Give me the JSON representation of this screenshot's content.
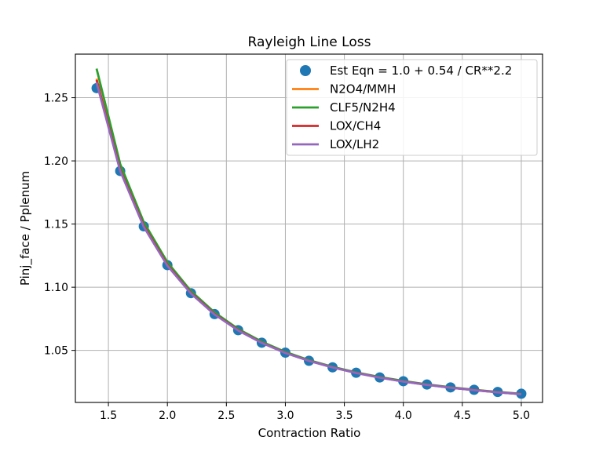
{
  "chart_data": {
    "type": "line",
    "title": "Rayleigh Line Loss",
    "xlabel": "Contraction Ratio",
    "ylabel": "Pinj_face / Pplenum",
    "xlim": [
      1.22,
      5.18
    ],
    "ylim": [
      1.0088,
      1.2845
    ],
    "xticks": [
      1.5,
      2.0,
      2.5,
      3.0,
      3.5,
      4.0,
      4.5,
      5.0
    ],
    "xtick_labels": [
      "1.5",
      "2.0",
      "2.5",
      "3.0",
      "3.5",
      "4.0",
      "4.5",
      "5.0"
    ],
    "yticks": [
      1.05,
      1.1,
      1.15,
      1.2,
      1.25
    ],
    "ytick_labels": [
      "1.05",
      "1.10",
      "1.15",
      "1.20",
      "1.25"
    ],
    "grid": true,
    "legend_position": "top-right",
    "x": [
      1.4,
      1.6,
      1.8,
      2.0,
      2.2,
      2.4,
      2.6,
      2.8,
      3.0,
      3.2,
      3.4,
      3.6,
      3.8,
      4.0,
      4.2,
      4.4,
      4.6,
      4.8,
      5.0
    ],
    "series": [
      {
        "name": "Est Eqn = 1.0 + 0.54 / CR**2.2",
        "kind": "scatter",
        "color": "#1f77b4",
        "values": [
          1.2576,
          1.192,
          1.1482,
          1.1175,
          1.0953,
          1.0787,
          1.066,
          1.0561,
          1.0482,
          1.0418,
          1.0366,
          1.0323,
          1.0286,
          1.0256,
          1.023,
          1.0207,
          1.0188,
          1.0171,
          1.0157
        ]
      },
      {
        "name": "N2O4/MMH",
        "kind": "line",
        "color": "#ff7f0e",
        "values": [
          1.265,
          1.1935,
          1.149,
          1.118,
          1.0958,
          1.079,
          1.0663,
          1.0563,
          1.0483,
          1.0419,
          1.0367,
          1.0323,
          1.0286,
          1.0255,
          1.0229,
          1.0206,
          1.0186,
          1.0169,
          1.0154
        ]
      },
      {
        "name": "CLF5/N2H4",
        "kind": "line",
        "color": "#2ca02c",
        "values": [
          1.273,
          1.1975,
          1.1515,
          1.1198,
          1.097,
          1.08,
          1.067,
          1.0569,
          1.0488,
          1.0423,
          1.037,
          1.0326,
          1.0289,
          1.0258,
          1.0231,
          1.0208,
          1.0188,
          1.0171,
          1.0156
        ]
      },
      {
        "name": "LOX/CH4",
        "kind": "line",
        "color": "#d62728",
        "values": [
          1.264,
          1.193,
          1.1487,
          1.1177,
          1.0955,
          1.0788,
          1.0661,
          1.0561,
          1.0481,
          1.0418,
          1.0366,
          1.0322,
          1.0285,
          1.0254,
          1.0228,
          1.0205,
          1.0186,
          1.0169,
          1.0154
        ]
      },
      {
        "name": "LOX/LH2",
        "kind": "line",
        "color": "#9467bd",
        "values": [
          1.262,
          1.192,
          1.1478,
          1.117,
          1.095,
          1.0784,
          1.0658,
          1.0559,
          1.048,
          1.0417,
          1.0365,
          1.0321,
          1.0284,
          1.0253,
          1.0227,
          1.0205,
          1.0185,
          1.0168,
          1.0153
        ]
      }
    ]
  }
}
